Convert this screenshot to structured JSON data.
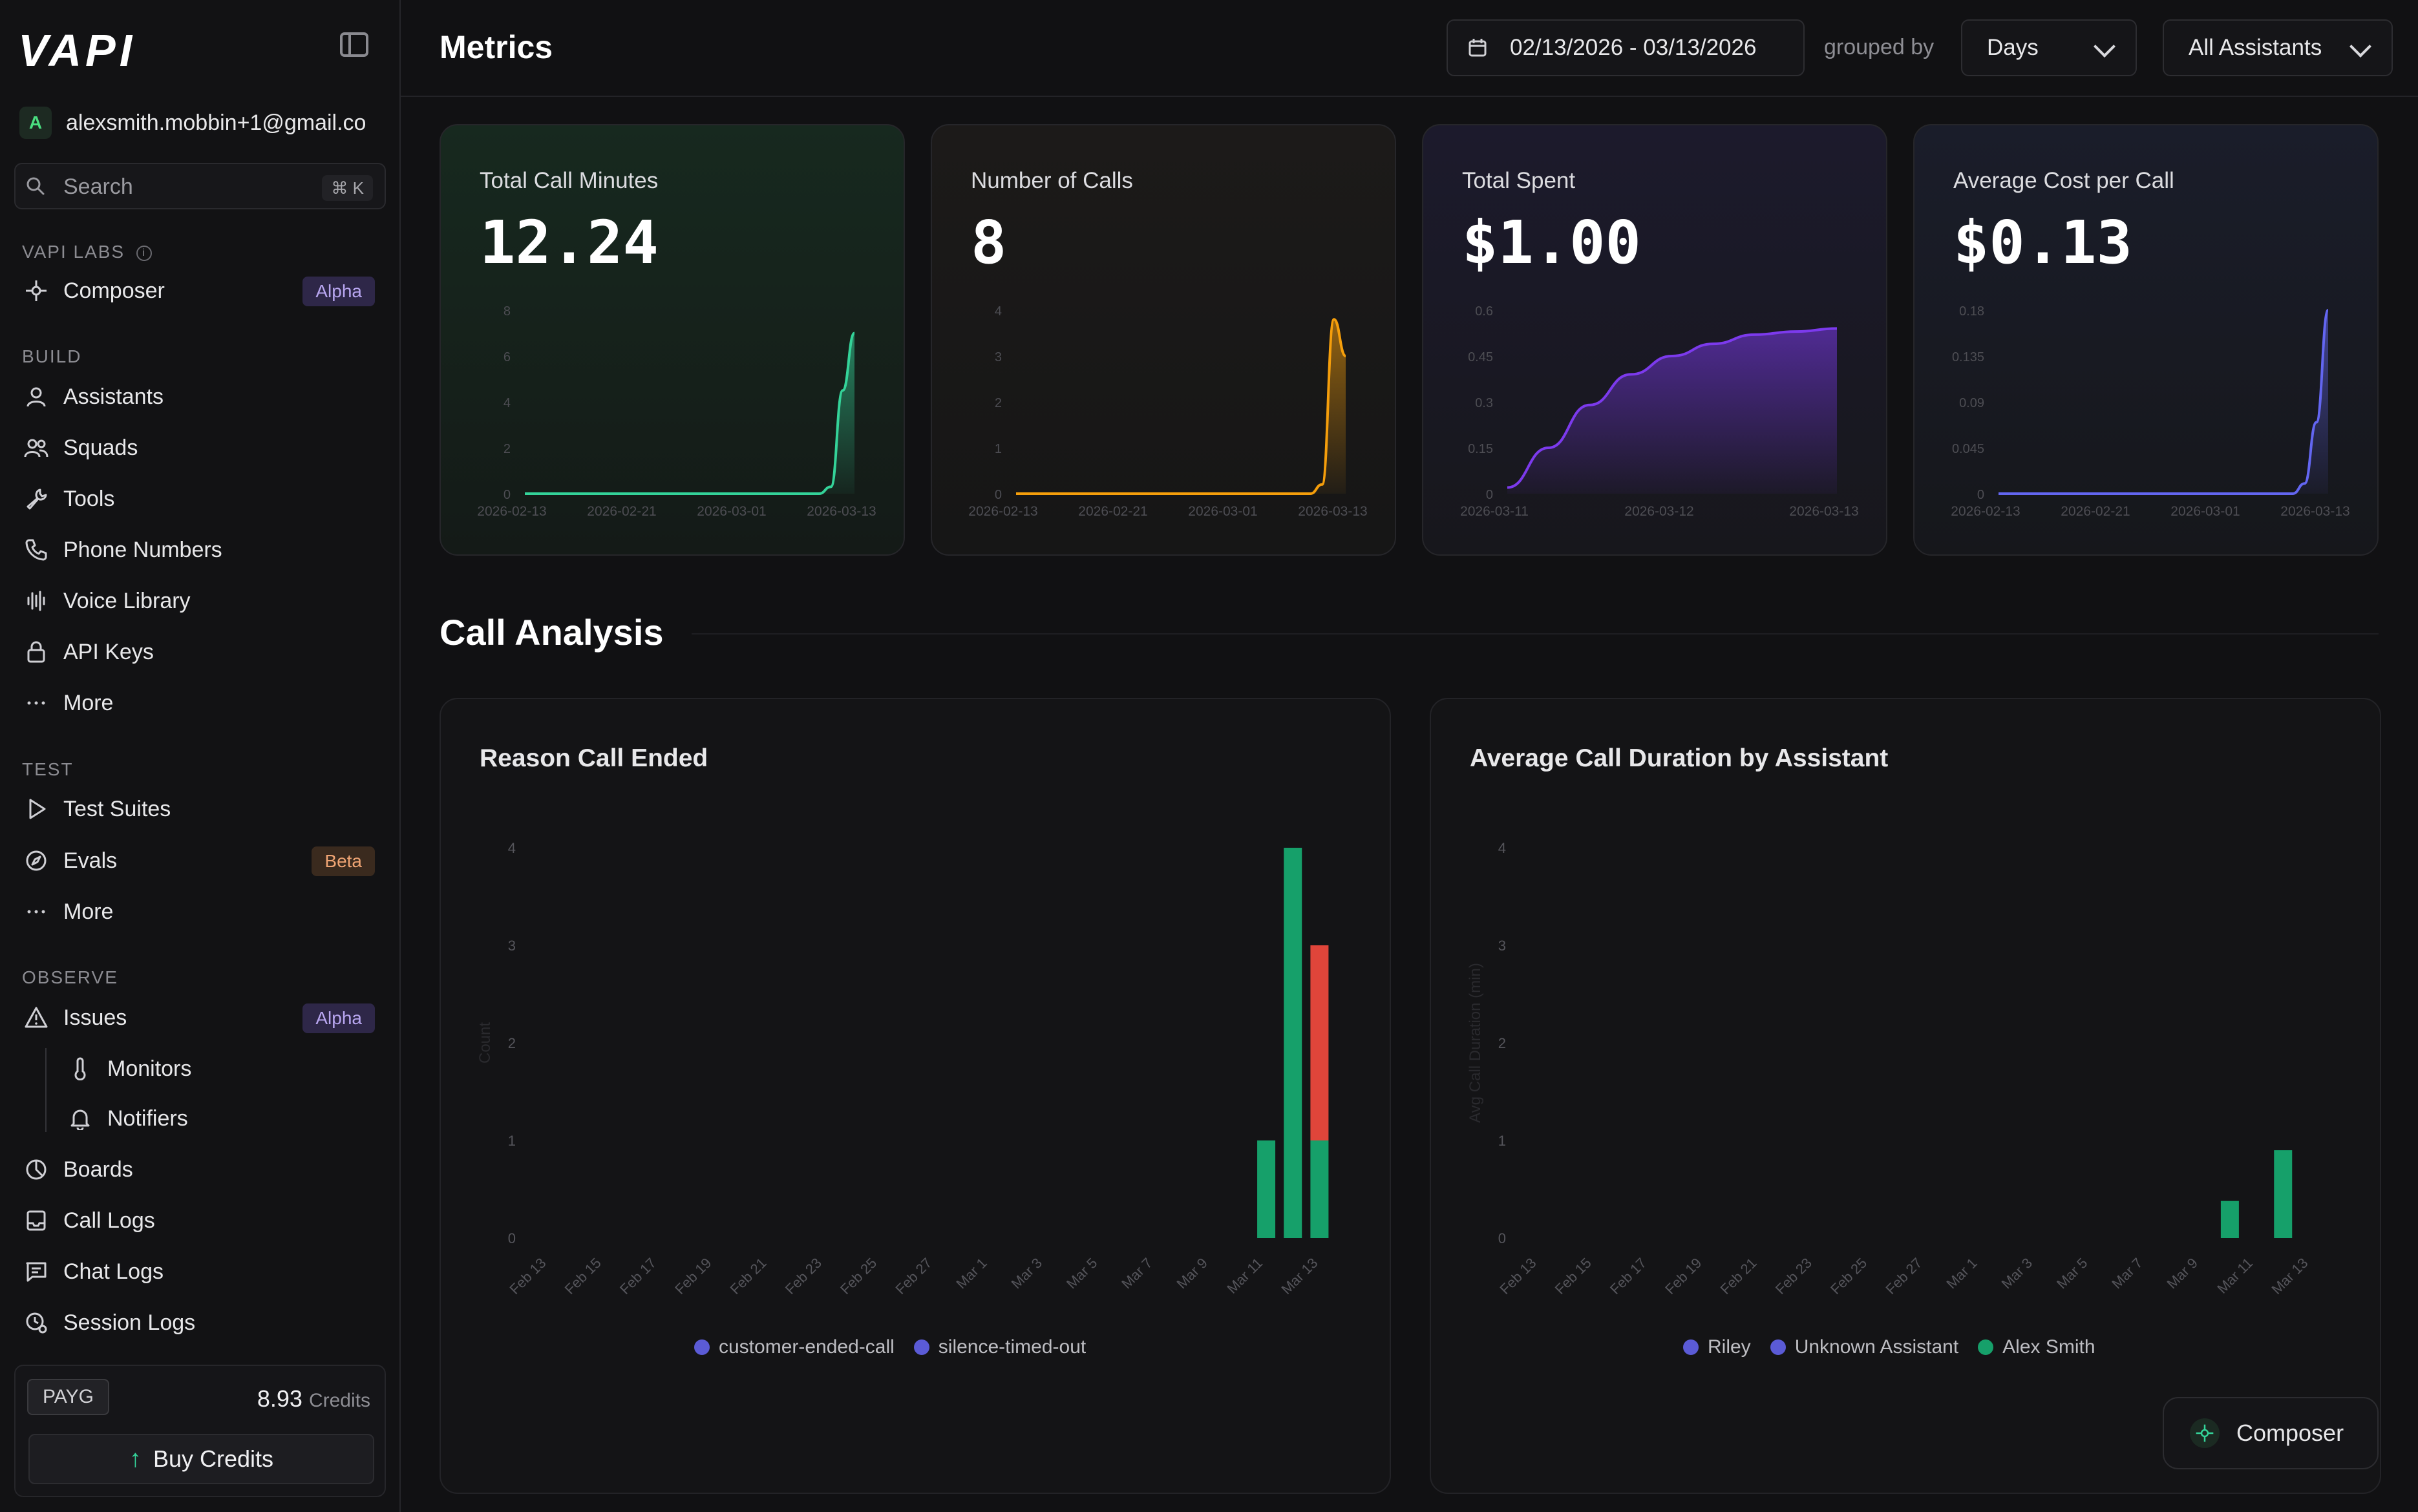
{
  "app": {
    "logo_text": "VAPI",
    "account_initial": "A",
    "account_email": "alexsmith.mobbin+1@gmail.co"
  },
  "search": {
    "label": "Search",
    "shortcut": "⌘ K"
  },
  "sidebar": {
    "sections": {
      "labs": "VAPI LABS",
      "build": "BUILD",
      "test": "TEST",
      "observe": "OBSERVE"
    },
    "items": {
      "composer": "Composer",
      "composer_badge": "Alpha",
      "assistants": "Assistants",
      "squads": "Squads",
      "tools": "Tools",
      "phone_numbers": "Phone Numbers",
      "voice_library": "Voice Library",
      "api_keys": "API Keys",
      "more_build": "More",
      "test_suites": "Test Suites",
      "evals": "Evals",
      "evals_badge": "Beta",
      "more_test": "More",
      "issues": "Issues",
      "issues_badge": "Alpha",
      "monitors": "Monitors",
      "notifiers": "Notifiers",
      "boards": "Boards",
      "call_logs": "Call Logs",
      "chat_logs": "Chat Logs",
      "session_logs": "Session Logs"
    },
    "plan": {
      "tag": "PAYG",
      "credits_value": "8.93",
      "credits_unit": "Credits",
      "buy_label": "Buy Credits"
    }
  },
  "header": {
    "title": "Metrics",
    "date_range": "02/13/2026 - 03/13/2026",
    "grouped_by_label": "grouped by",
    "group_value": "Days",
    "assistant_filter": "All Assistants"
  },
  "metrics": [
    {
      "key": "minutes",
      "title": "Total Call Minutes",
      "value": "12.24",
      "color": "#34d399",
      "chart_data": {
        "type": "area",
        "y_ticks": [
          "8",
          "6",
          "4",
          "2",
          "0"
        ],
        "ylim": [
          0,
          8
        ],
        "x_ticks": [
          "2026-02-13",
          "2026-02-21",
          "2026-03-01",
          "2026-03-13"
        ],
        "x": [
          0,
          1,
          2,
          3,
          4,
          5,
          6,
          7,
          8,
          9,
          10,
          11,
          12,
          13,
          14,
          15,
          16,
          17,
          18,
          19,
          20,
          21,
          22,
          23,
          24,
          25,
          26,
          27,
          28
        ],
        "values": [
          0,
          0,
          0,
          0,
          0,
          0,
          0,
          0,
          0,
          0,
          0,
          0,
          0,
          0,
          0,
          0,
          0,
          0,
          0,
          0,
          0,
          0,
          0,
          0,
          0,
          0,
          0.3,
          4.5,
          7
        ]
      }
    },
    {
      "key": "calls",
      "title": "Number of Calls",
      "value": "8",
      "color": "#f59e0b",
      "chart_data": {
        "type": "area",
        "y_ticks": [
          "4",
          "3",
          "2",
          "1",
          "0"
        ],
        "ylim": [
          0,
          4
        ],
        "x_ticks": [
          "2026-02-13",
          "2026-02-21",
          "2026-03-01",
          "2026-03-13"
        ],
        "x": [
          0,
          1,
          2,
          3,
          4,
          5,
          6,
          7,
          8,
          9,
          10,
          11,
          12,
          13,
          14,
          15,
          16,
          17,
          18,
          19,
          20,
          21,
          22,
          23,
          24,
          25,
          26,
          27,
          28
        ],
        "values": [
          0,
          0,
          0,
          0,
          0,
          0,
          0,
          0,
          0,
          0,
          0,
          0,
          0,
          0,
          0,
          0,
          0,
          0,
          0,
          0,
          0,
          0,
          0,
          0,
          0,
          0,
          0.2,
          3.8,
          3
        ]
      }
    },
    {
      "key": "spent",
      "title": "Total Spent",
      "value": "$1.00",
      "color": "#7c3aed",
      "chart_data": {
        "type": "area",
        "y_ticks": [
          "0.6",
          "0.45",
          "0.3",
          "0.15",
          "0"
        ],
        "ylim": [
          0,
          0.6
        ],
        "x_ticks": [
          "2026-03-11",
          "2026-03-12",
          "2026-03-13"
        ],
        "x": [
          0,
          0.25,
          0.5,
          0.75,
          1.0,
          1.25,
          1.5,
          1.75,
          2.0
        ],
        "values": [
          0.02,
          0.15,
          0.29,
          0.39,
          0.45,
          0.49,
          0.52,
          0.53,
          0.54
        ]
      }
    },
    {
      "key": "avg_cost",
      "title": "Average Cost per Call",
      "value": "$0.13",
      "color": "#6366f1",
      "chart_data": {
        "type": "area",
        "y_ticks": [
          "0.18",
          "0.135",
          "0.09",
          "0.045",
          "0"
        ],
        "ylim": [
          0,
          0.18
        ],
        "x_ticks": [
          "2026-02-13",
          "2026-02-21",
          "2026-03-01",
          "2026-03-13"
        ],
        "x": [
          0,
          1,
          2,
          3,
          4,
          5,
          6,
          7,
          8,
          9,
          10,
          11,
          12,
          13,
          14,
          15,
          16,
          17,
          18,
          19,
          20,
          21,
          22,
          23,
          24,
          25,
          26,
          27,
          28
        ],
        "values": [
          0,
          0,
          0,
          0,
          0,
          0,
          0,
          0,
          0,
          0,
          0,
          0,
          0,
          0,
          0,
          0,
          0,
          0,
          0,
          0,
          0,
          0,
          0,
          0,
          0,
          0,
          0.01,
          0.07,
          0.18
        ]
      }
    }
  ],
  "analysis": {
    "title": "Call Analysis",
    "reason": {
      "title": "Reason Call Ended",
      "chart_data": {
        "type": "bar",
        "categories": [
          "Feb 13",
          "Feb 15",
          "Feb 17",
          "Feb 19",
          "Feb 21",
          "Feb 23",
          "Feb 25",
          "Feb 27",
          "Mar 1",
          "Mar 3",
          "Mar 5",
          "Mar 7",
          "Mar 9",
          "Mar 11",
          "Mar 13"
        ],
        "y_ticks": [
          "4",
          "3",
          "2",
          "1",
          "0"
        ],
        "ylim": [
          0,
          4
        ],
        "ylabel": "Count",
        "bars": [
          {
            "day": 27,
            "stack": [
              {
                "value": 1,
                "color": "#16a06a"
              }
            ]
          },
          {
            "day": 28,
            "stack": [
              {
                "value": 4,
                "color": "#16a06a"
              }
            ]
          },
          {
            "day": 29,
            "stack": [
              {
                "value": 1,
                "color": "#16a06a"
              },
              {
                "value": 2,
                "color": "#e0453a"
              }
            ]
          }
        ],
        "legend": [
          {
            "name": "customer-ended-call",
            "color": "#5b5bd6"
          },
          {
            "name": "silence-timed-out",
            "color": "#5b5bd6"
          }
        ]
      }
    },
    "duration": {
      "title": "Average Call Duration by Assistant",
      "chart_data": {
        "type": "bar",
        "categories": [
          "Feb 13",
          "Feb 15",
          "Feb 17",
          "Feb 19",
          "Feb 21",
          "Feb 23",
          "Feb 25",
          "Feb 27",
          "Mar 1",
          "Mar 3",
          "Mar 5",
          "Mar 7",
          "Mar 9",
          "Mar 11",
          "Mar 13"
        ],
        "y_ticks": [
          "4",
          "3",
          "2",
          "1",
          "0"
        ],
        "ylim": [
          0,
          4
        ],
        "ylabel": "Avg Call Duration (min)",
        "bars": [
          {
            "day": 26,
            "stack": [
              {
                "value": 0.38,
                "color": "#16a06a"
              }
            ]
          },
          {
            "day": 28,
            "stack": [
              {
                "value": 0.9,
                "color": "#16a06a"
              }
            ]
          }
        ],
        "legend": [
          {
            "name": "Riley",
            "color": "#5b5bd6"
          },
          {
            "name": "Unknown Assistant",
            "color": "#5b5bd6"
          },
          {
            "name": "Alex Smith",
            "color": "#16a06a"
          }
        ]
      }
    }
  },
  "composer_button": "Composer"
}
